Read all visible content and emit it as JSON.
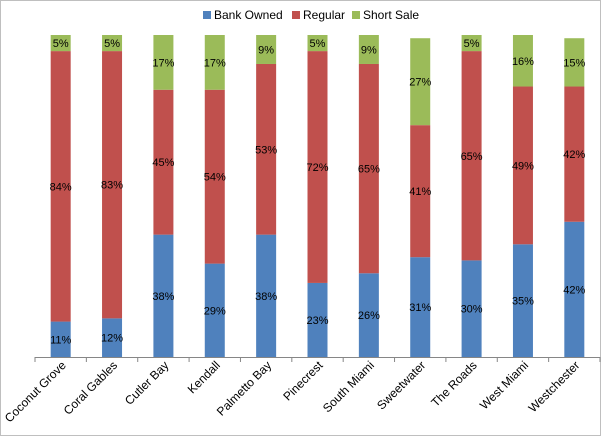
{
  "chart_data": {
    "type": "bar",
    "stacked": true,
    "percent_stacked": true,
    "title": "",
    "xlabel": "",
    "ylabel": "",
    "ylim": [
      0,
      100
    ],
    "legend_position": "top",
    "grid": false,
    "categories": [
      "Coconut Grove",
      "Coral Gables",
      "Cutler Bay",
      "Kendall",
      "Palmetto Bay",
      "Pinecrest",
      "South Miami",
      "Sweetwater",
      "The Roads",
      "West Miami",
      "Westchester"
    ],
    "series": [
      {
        "name": "Bank Owned",
        "color": "#4f81bd",
        "values": [
          11,
          12,
          38,
          29,
          38,
          23,
          26,
          31,
          30,
          35,
          42
        ],
        "labels": [
          "11%",
          "12%",
          "38%",
          "29%",
          "38%",
          "23%",
          "26%",
          "31%",
          "30%",
          "35%",
          "42%"
        ]
      },
      {
        "name": "Regular",
        "color": "#c0504d",
        "values": [
          84,
          83,
          45,
          54,
          53,
          72,
          65,
          41,
          65,
          49,
          42
        ],
        "labels": [
          "84%",
          "83%",
          "45%",
          "54%",
          "53%",
          "72%",
          "65%",
          "41%",
          "65%",
          "49%",
          "42%"
        ]
      },
      {
        "name": "Short Sale",
        "color": "#9bbb59",
        "values": [
          5,
          5,
          17,
          17,
          9,
          5,
          9,
          27,
          5,
          16,
          15
        ],
        "labels": [
          "5%",
          "5%",
          "17%",
          "17%",
          "9%",
          "5%",
          "9%",
          "27%",
          "5%",
          "16%",
          "15%"
        ]
      }
    ]
  }
}
